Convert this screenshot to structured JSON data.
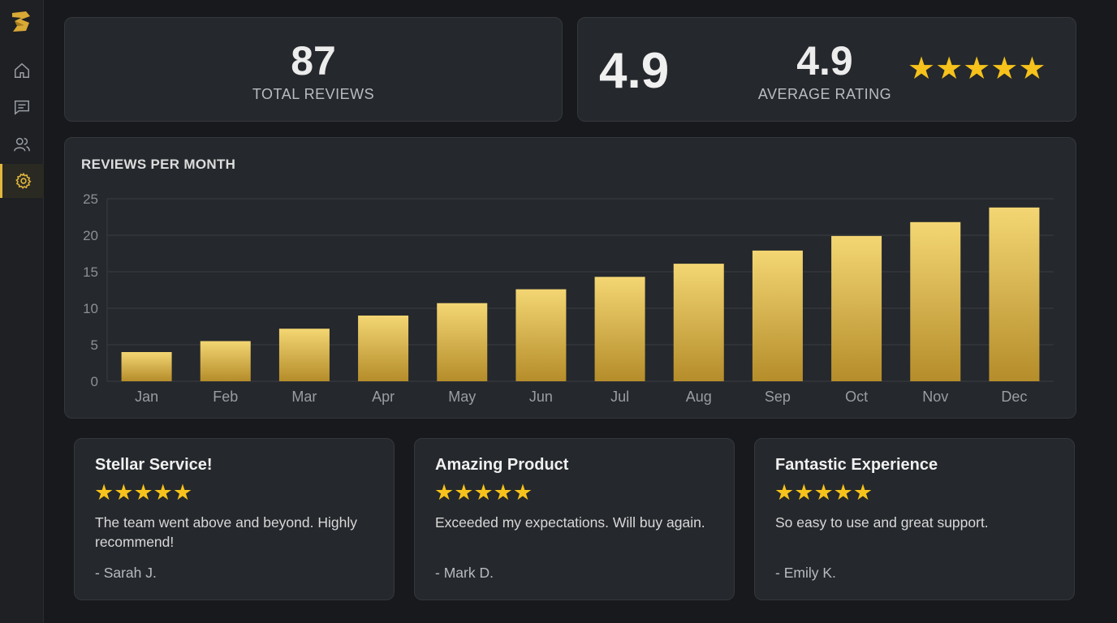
{
  "sidebar": {
    "logo": "logo-icon",
    "items": [
      {
        "name": "home",
        "icon": "home-icon"
      },
      {
        "name": "messages",
        "icon": "chat-icon"
      },
      {
        "name": "users",
        "icon": "users-icon"
      },
      {
        "name": "settings",
        "icon": "gear-icon",
        "active": true
      }
    ]
  },
  "stats": {
    "total_reviews": {
      "value": "87",
      "label": "TOTAL REVIEWS"
    },
    "average_rating": {
      "big_value": "4.9",
      "value": "4.9",
      "label": "AVERAGE RATING",
      "stars": 5
    }
  },
  "chart_data": {
    "type": "bar",
    "title": "REVIEWS PER MONTH",
    "categories": [
      "Jan",
      "Feb",
      "Mar",
      "Apr",
      "May",
      "Jun",
      "Jul",
      "Aug",
      "Sep",
      "Oct",
      "Nov",
      "Dec"
    ],
    "values": [
      4,
      5.5,
      7.2,
      9,
      10.7,
      12.6,
      14.3,
      16.1,
      17.9,
      19.9,
      21.8,
      23.8
    ],
    "yticks": [
      "0",
      "5",
      "10",
      "15",
      "20",
      "25"
    ],
    "ylim": [
      0,
      25
    ],
    "grid": true,
    "colors": {
      "bar_top": "#f3d673",
      "bar_bottom": "#b58d2a"
    }
  },
  "reviews": [
    {
      "title": "Stellar Service!",
      "stars": 5,
      "body": "The team went above and beyond. Highly recommend!",
      "author": "- Sarah J."
    },
    {
      "title": "Amazing Product",
      "stars": 5,
      "body": "Exceeded my expectations. Will buy again.",
      "author": "- Mark D."
    },
    {
      "title": "Fantastic Experience",
      "stars": 5,
      "body": "So easy to use and great support.",
      "author": "- Emily K."
    }
  ],
  "colors": {
    "accent": "#e2b73f",
    "star": "#f6c21b"
  }
}
